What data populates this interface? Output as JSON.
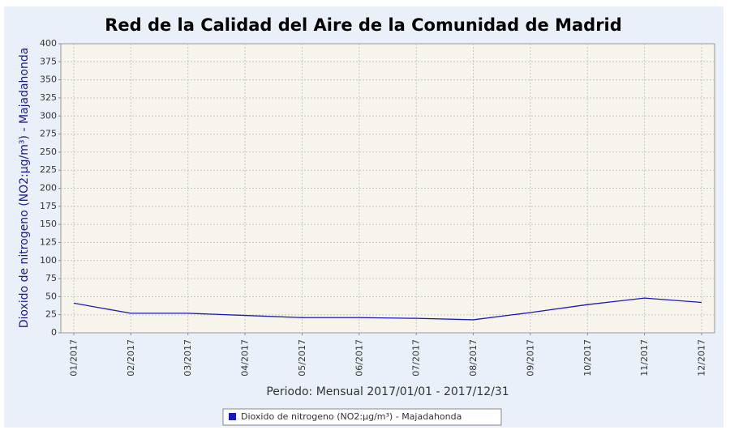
{
  "chart_data": {
    "type": "line",
    "title": "Red de la Calidad del Aire de la Comunidad de Madrid",
    "x_label": "Periodo: Mensual 2017/01/01 - 2017/12/31",
    "y_label": "Dioxido de nitrogeno (NO2:µg/m³) - Majadahonda",
    "categories": [
      "01/2017",
      "02/2017",
      "03/2017",
      "04/2017",
      "05/2017",
      "06/2017",
      "07/2017",
      "08/2017",
      "09/2017",
      "10/2017",
      "11/2017",
      "12/2017"
    ],
    "series": [
      {
        "name": "Dioxido de nitrogeno (NO2:µg/m³) - Majadahonda",
        "color": "#1a1ab4",
        "values": [
          41,
          27,
          27,
          24,
          21,
          21,
          20,
          18,
          28,
          39,
          48,
          42
        ]
      }
    ],
    "ylim": [
      0,
      400
    ],
    "yticks": [
      0,
      25,
      50,
      75,
      100,
      125,
      150,
      175,
      200,
      225,
      250,
      275,
      300,
      325,
      350,
      375,
      400
    ],
    "grid": true,
    "legend": "bottom"
  }
}
